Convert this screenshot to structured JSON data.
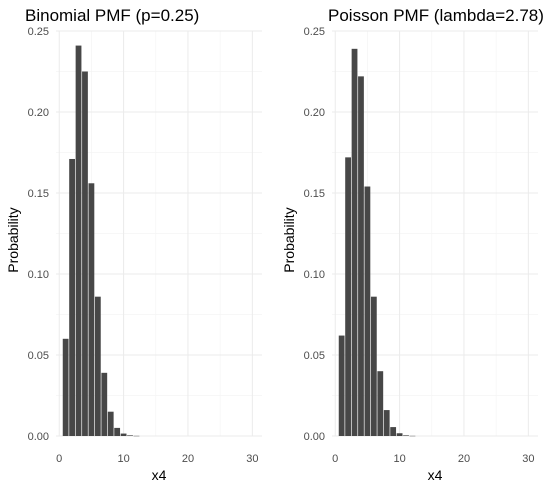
{
  "chart_data": [
    {
      "type": "bar",
      "title": "Binomial PMF (p=0.25)",
      "xlabel": "x4",
      "ylabel": "Probability",
      "xlim": [
        -0.5,
        31.5
      ],
      "ylim": [
        0,
        0.25
      ],
      "x_ticks": [
        "0",
        "10",
        "20",
        "30"
      ],
      "y_ticks": [
        "0.00",
        "0.05",
        "0.10",
        "0.15",
        "0.20",
        "0.25"
      ],
      "grid": true,
      "bar_color": "#474747",
      "x": [
        1,
        2,
        3,
        4,
        5,
        6,
        7,
        8,
        9,
        10,
        11,
        12,
        13,
        14,
        15,
        16,
        17,
        18,
        19,
        20
      ],
      "values": [
        0.06,
        0.171,
        0.241,
        0.225,
        0.156,
        0.086,
        0.039,
        0.015,
        0.005,
        0.0015,
        0.0004,
        0.0001,
        0,
        0,
        0,
        0,
        0,
        0,
        0,
        0
      ]
    },
    {
      "type": "bar",
      "title": "Poisson PMF (lambda=2.78)",
      "xlabel": "x4",
      "ylabel": "Probability",
      "xlim": [
        -0.5,
        31.5
      ],
      "ylim": [
        0,
        0.25
      ],
      "x_ticks": [
        "0",
        "10",
        "20",
        "30"
      ],
      "y_ticks": [
        "0.00",
        "0.05",
        "0.10",
        "0.15",
        "0.20",
        "0.25"
      ],
      "grid": true,
      "bar_color": "#474747",
      "x": [
        1,
        2,
        3,
        4,
        5,
        6,
        7,
        8,
        9,
        10,
        11,
        12,
        13,
        14,
        15,
        16,
        17,
        18,
        19,
        20
      ],
      "values": [
        0.062,
        0.172,
        0.239,
        0.222,
        0.154,
        0.086,
        0.04,
        0.016,
        0.0055,
        0.0017,
        0.0004,
        0.0001,
        0,
        0,
        0,
        0,
        0,
        0,
        0,
        0
      ]
    }
  ]
}
